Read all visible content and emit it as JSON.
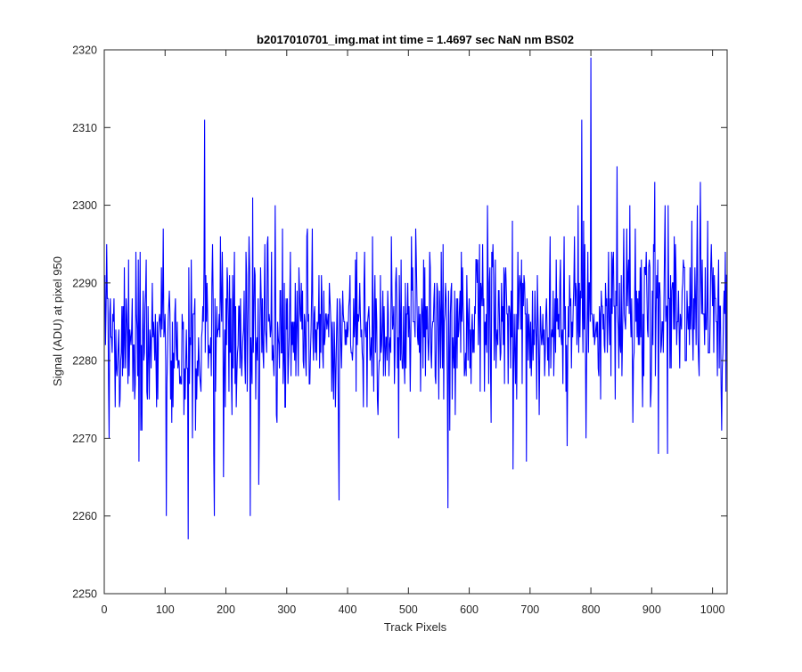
{
  "chart_data": {
    "type": "line",
    "title": "b2017010701_img.mat int time = 1.4697 sec  NaN nm BS02",
    "xlabel": "Track Pixels",
    "ylabel": "Signal (ADU) at pixel 950",
    "xlim": [
      0,
      1024
    ],
    "ylim": [
      2250,
      2320
    ],
    "xticks": [
      0,
      100,
      200,
      300,
      400,
      500,
      600,
      700,
      800,
      900,
      1000
    ],
    "yticks": [
      2250,
      2260,
      2270,
      2280,
      2290,
      2300,
      2310,
      2320
    ],
    "grid": false,
    "series_color": "#0000ff",
    "series": [
      {
        "x_start": 1,
        "x_step": 1,
        "baseline": {
          "start": 2282,
          "end": 2287
        },
        "noise_std": 5.5,
        "highlights": [
          {
            "x": 4,
            "y": 2295
          },
          {
            "x": 8,
            "y": 2270
          },
          {
            "x": 52,
            "y": 2294
          },
          {
            "x": 57,
            "y": 2267
          },
          {
            "x": 97,
            "y": 2297
          },
          {
            "x": 102,
            "y": 2260
          },
          {
            "x": 138,
            "y": 2257
          },
          {
            "x": 165,
            "y": 2311
          },
          {
            "x": 181,
            "y": 2260
          },
          {
            "x": 196,
            "y": 2265
          },
          {
            "x": 240,
            "y": 2260
          },
          {
            "x": 244,
            "y": 2301
          },
          {
            "x": 254,
            "y": 2264
          },
          {
            "x": 269,
            "y": 2296
          },
          {
            "x": 281,
            "y": 2300
          },
          {
            "x": 386,
            "y": 2262
          },
          {
            "x": 565,
            "y": 2261
          },
          {
            "x": 672,
            "y": 2266
          },
          {
            "x": 785,
            "y": 2311
          },
          {
            "x": 788,
            "y": 2298
          },
          {
            "x": 792,
            "y": 2270
          },
          {
            "x": 800,
            "y": 2319
          },
          {
            "x": 843,
            "y": 2305
          },
          {
            "x": 905,
            "y": 2303
          },
          {
            "x": 911,
            "y": 2268
          },
          {
            "x": 980,
            "y": 2303
          },
          {
            "x": 1015,
            "y": 2271
          },
          {
            "x": 1023,
            "y": 2291
          }
        ]
      }
    ]
  }
}
